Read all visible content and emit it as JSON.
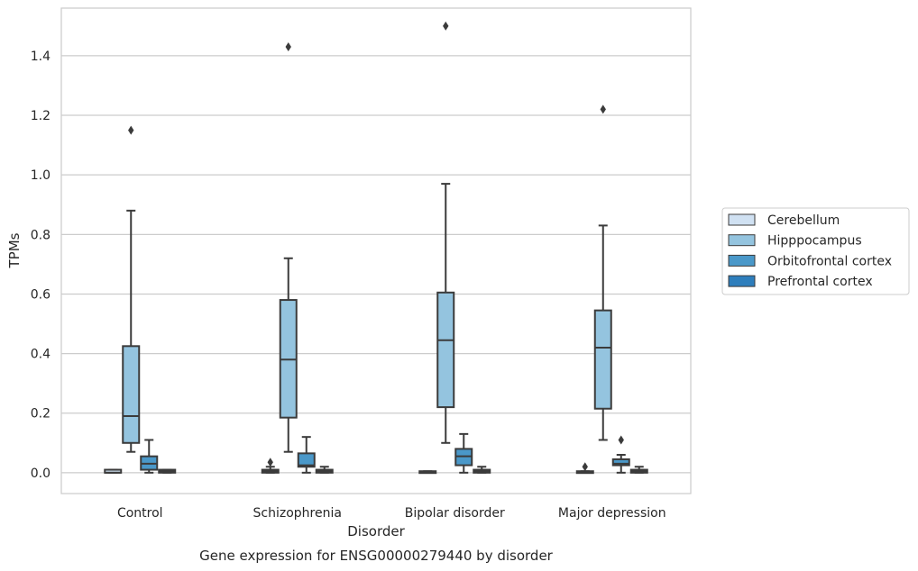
{
  "chart_data": {
    "type": "box",
    "xlabel": "Disorder",
    "ylabel": "TPMs",
    "caption": "Gene expression for ENSG00000279440 by disorder",
    "ylim": [
      -0.07,
      1.56
    ],
    "yticks": [
      "0.0",
      "0.2",
      "0.4",
      "0.6",
      "0.8",
      "1.0",
      "1.2",
      "1.4"
    ],
    "grid": "horizontal",
    "legend_position": "right",
    "categories": [
      "Control",
      "Schizophrenia",
      "Bipolar disorder",
      "Major depression"
    ],
    "series": [
      {
        "name": "Cerebellum",
        "color": "#d0e1f2",
        "boxes": [
          {
            "q1": 0.0,
            "median": 0.0,
            "q3": 0.01,
            "whislo": 0.0,
            "whishi": 0.01,
            "fliers": []
          },
          {
            "q1": 0.0,
            "median": 0.005,
            "q3": 0.01,
            "whislo": 0.0,
            "whishi": 0.02,
            "fliers": [
              0.035
            ]
          },
          {
            "q1": 0.0,
            "median": 0.0,
            "q3": 0.005,
            "whislo": 0.0,
            "whishi": 0.005,
            "fliers": []
          },
          {
            "q1": 0.0,
            "median": 0.0,
            "q3": 0.005,
            "whislo": 0.0,
            "whishi": 0.005,
            "fliers": [
              0.02
            ]
          }
        ]
      },
      {
        "name": "Hipppocampus",
        "color": "#94c4df",
        "boxes": [
          {
            "q1": 0.1,
            "median": 0.19,
            "q3": 0.425,
            "whislo": 0.07,
            "whishi": 0.88,
            "fliers": [
              1.15
            ]
          },
          {
            "q1": 0.185,
            "median": 0.38,
            "q3": 0.58,
            "whislo": 0.07,
            "whishi": 0.72,
            "fliers": [
              1.43
            ]
          },
          {
            "q1": 0.22,
            "median": 0.445,
            "q3": 0.605,
            "whislo": 0.1,
            "whishi": 0.97,
            "fliers": [
              1.5
            ]
          },
          {
            "q1": 0.215,
            "median": 0.42,
            "q3": 0.545,
            "whislo": 0.11,
            "whishi": 0.83,
            "fliers": [
              1.22
            ]
          }
        ]
      },
      {
        "name": "Orbitofrontal cortex",
        "color": "#4a98c9",
        "boxes": [
          {
            "q1": 0.01,
            "median": 0.03,
            "q3": 0.055,
            "whislo": 0.0,
            "whishi": 0.11,
            "fliers": []
          },
          {
            "q1": 0.02,
            "median": 0.025,
            "q3": 0.065,
            "whislo": 0.0,
            "whishi": 0.12,
            "fliers": []
          },
          {
            "q1": 0.025,
            "median": 0.055,
            "q3": 0.08,
            "whislo": 0.0,
            "whishi": 0.13,
            "fliers": []
          },
          {
            "q1": 0.025,
            "median": 0.03,
            "q3": 0.045,
            "whislo": 0.0,
            "whishi": 0.06,
            "fliers": [
              0.11
            ]
          }
        ]
      },
      {
        "name": "Prefrontal cortex",
        "color": "#2e7ebc",
        "boxes": [
          {
            "q1": 0.0,
            "median": 0.005,
            "q3": 0.01,
            "whislo": 0.0,
            "whishi": 0.01,
            "fliers": []
          },
          {
            "q1": 0.0,
            "median": 0.005,
            "q3": 0.01,
            "whislo": 0.0,
            "whishi": 0.02,
            "fliers": []
          },
          {
            "q1": 0.0,
            "median": 0.005,
            "q3": 0.01,
            "whislo": 0.0,
            "whishi": 0.02,
            "fliers": []
          },
          {
            "q1": 0.0,
            "median": 0.005,
            "q3": 0.01,
            "whislo": 0.0,
            "whishi": 0.02,
            "fliers": []
          }
        ]
      }
    ]
  }
}
